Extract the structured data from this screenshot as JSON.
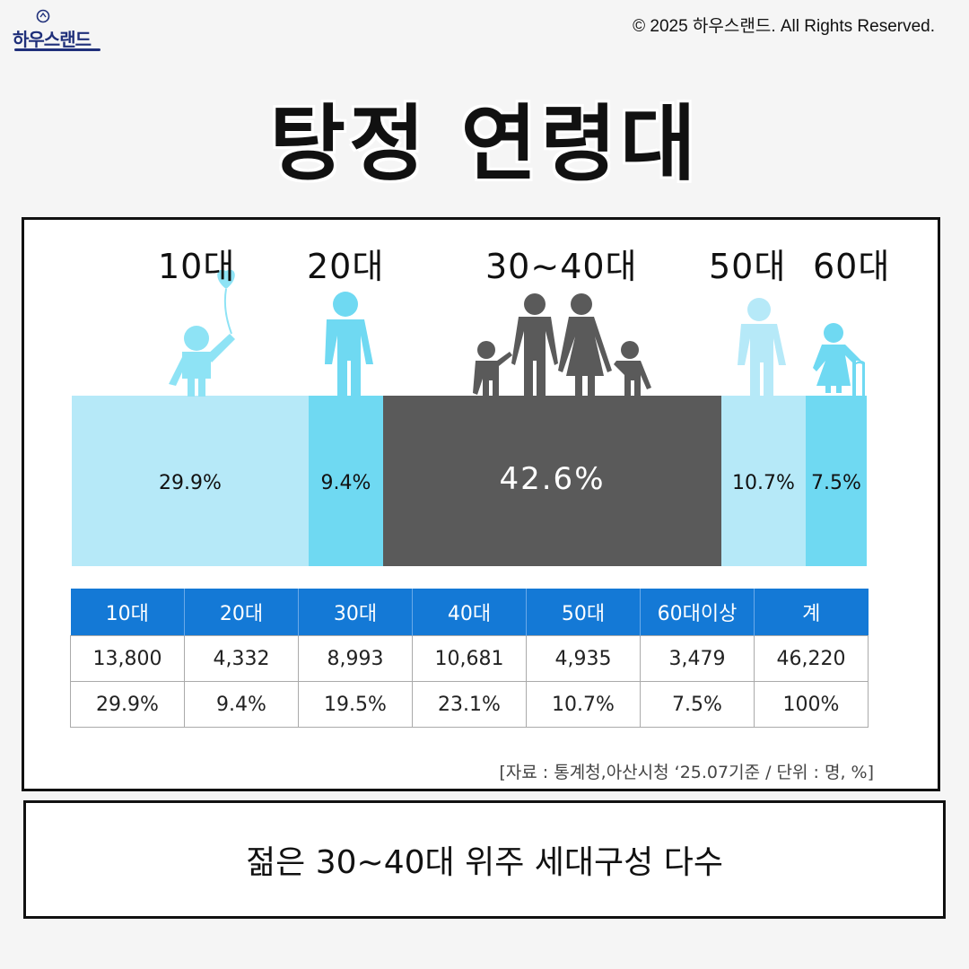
{
  "brand": {
    "logo_text": "하우스랜드"
  },
  "copyright": "© 2025 하우스랜드. All Rights Reserved.",
  "title": "탕정 연령대",
  "colors": {
    "light_blue": "#b6e9f8",
    "mid_blue": "#6fd9f2",
    "dark_gray": "#5a5a5a",
    "figure_blue": "#8ee3f5",
    "header_blue": "#1479d6"
  },
  "chart_data": {
    "type": "bar",
    "subtype": "proportional-width-blocks",
    "categories": [
      "10대",
      "20대",
      "30~40대",
      "50대",
      "60대"
    ],
    "values": [
      29.9,
      9.4,
      42.6,
      10.7,
      7.5
    ],
    "value_labels": [
      "29.9%",
      "9.4%",
      "42.6%",
      "10.7%",
      "7.5%"
    ],
    "icons": [
      "child-with-balloon-icon",
      "adult-person-icon",
      "family-icon",
      "older-adult-icon",
      "elderly-with-cane-icon"
    ],
    "block_colors": [
      "#b6e9f8",
      "#6fd9f2",
      "#5a5a5a",
      "#b6e9f8",
      "#6fd9f2"
    ]
  },
  "table": {
    "headers": [
      "10대",
      "20대",
      "30대",
      "40대",
      "50대",
      "60대이상",
      "계"
    ],
    "rows": [
      [
        "13,800",
        "4,332",
        "8,993",
        "10,681",
        "4,935",
        "3,479",
        "46,220"
      ],
      [
        "29.9%",
        "9.4%",
        "19.5%",
        "23.1%",
        "10.7%",
        "7.5%",
        "100%"
      ]
    ]
  },
  "source": "[자료 : 통계청,아산시청 ‘25.07기준 / 단위 : 명, %]",
  "summary": "젊은 30~40대 위주 세대구성 다수"
}
